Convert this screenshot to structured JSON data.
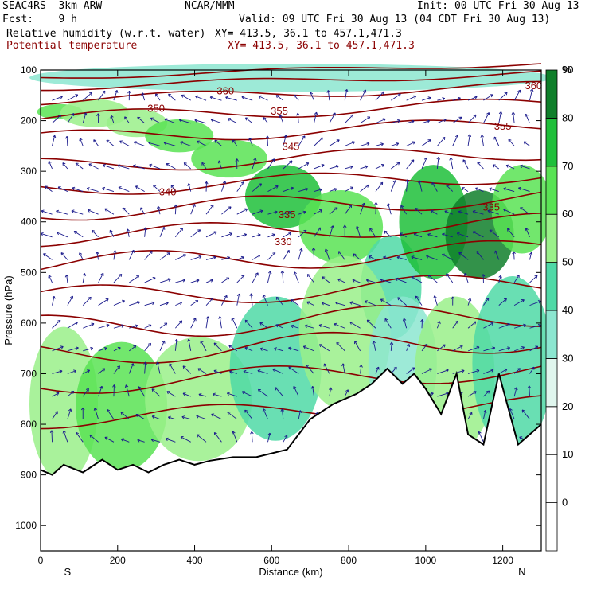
{
  "header": {
    "model_name": "SEAC4RS  3km ARW",
    "org": "NCAR/MMM",
    "init": "Init: 00 UTC Fri 30 Aug 13",
    "fcst": "Fcst:    9 h",
    "valid": "Valid: 09 UTC Fri 30 Aug 13 (04 CDT Fri 30 Aug 13)",
    "field1_name": "Relative humidity (w.r.t. water)",
    "field1_xy": "XY= 413.5, 36.1 to 457.1,471.3",
    "field2_name": "Potential temperature",
    "field2_xy": "XY= 413.5, 36.1 to 457.1,471.3"
  },
  "chart_data": {
    "type": "heatmap",
    "title": "",
    "xlabel": "Distance (km)",
    "ylabel": "Pressure (hPa)",
    "xlim": [
      0,
      1300
    ],
    "ylim": [
      1050,
      100
    ],
    "x_ticks": [
      0,
      200,
      400,
      600,
      800,
      1000,
      1200
    ],
    "y_ticks": [
      100,
      200,
      300,
      400,
      500,
      600,
      700,
      800,
      900,
      1000
    ],
    "x_end_labels": {
      "left": "S",
      "right": "N"
    },
    "colorbar": {
      "unit": "%",
      "levels": [
        0,
        10,
        20,
        30,
        40,
        50,
        60,
        70,
        80,
        90,
        100
      ],
      "tick_labels": [
        "0",
        "10",
        "20",
        "30",
        "40",
        "50",
        "60",
        "70",
        "80",
        "90"
      ],
      "colors": [
        "#ffffff",
        "#ffffff",
        "#ffffff",
        "#e0f6ee",
        "#8ce6d0",
        "#4fd9a6",
        "#9af08a",
        "#59e354",
        "#1fbf3a",
        "#0f7f2a"
      ]
    },
    "series": [
      {
        "field": "relative_humidity",
        "regions": [
          {
            "x": [
              20,
              80
            ],
            "p": [
              180,
              185
            ],
            "rh": 70
          },
          {
            "x": [
              80,
              200
            ],
            "p": [
              170,
              200
            ],
            "rh": 68
          },
          {
            "x": [
              200,
              300
            ],
            "p": [
              190,
              220
            ],
            "rh": 64
          },
          {
            "x": [
              300,
              420
            ],
            "p": [
              210,
              250
            ],
            "rh": 70
          },
          {
            "x": [
              420,
              560
            ],
            "p": [
              250,
              300
            ],
            "rh": 78
          },
          {
            "x": [
              560,
              700
            ],
            "p": [
              300,
              400
            ],
            "rh": 84
          },
          {
            "x": [
              700,
              860
            ],
            "p": [
              350,
              470
            ],
            "rh": 70
          },
          {
            "x": [
              860,
              960
            ],
            "p": [
              440,
              620
            ],
            "rh": 50
          },
          {
            "x": [
              960,
              1080
            ],
            "p": [
              300,
              500
            ],
            "rh": 80
          },
          {
            "x": [
              1080,
              1200
            ],
            "p": [
              350,
              500
            ],
            "rh": 92
          },
          {
            "x": [
              1200,
              1300
            ],
            "p": [
              300,
              450
            ],
            "rh": 72
          },
          {
            "x": [
              0,
              120
            ],
            "p": [
              620,
              900
            ],
            "rh": 60
          },
          {
            "x": [
              120,
              300
            ],
            "p": [
              650,
              880
            ],
            "rh": 72
          },
          {
            "x": [
              300,
              520
            ],
            "p": [
              640,
              860
            ],
            "rh": 60
          },
          {
            "x": [
              520,
              700
            ],
            "p": [
              560,
              820
            ],
            "rh": 56
          },
          {
            "x": [
              700,
              880
            ],
            "p": [
              480,
              760
            ],
            "rh": 60
          },
          {
            "x": [
              880,
              1000
            ],
            "p": [
              560,
              800
            ],
            "rh": 45
          },
          {
            "x": [
              1000,
              1150
            ],
            "p": [
              560,
              840
            ],
            "rh": 60
          },
          {
            "x": [
              1150,
              1300
            ],
            "p": [
              520,
              840
            ],
            "rh": 50
          },
          {
            "x": [
              0,
              1300
            ],
            "p": [
              100,
              130
            ],
            "rh": 40
          }
        ]
      },
      {
        "field": "potential_temperature",
        "contour_labels": [
          {
            "value": "360",
            "x": 480,
            "p": 140
          },
          {
            "value": "360",
            "x": 1280,
            "p": 130
          },
          {
            "value": "355",
            "x": 620,
            "p": 180
          },
          {
            "value": "355",
            "x": 1200,
            "p": 210
          },
          {
            "value": "350",
            "x": 300,
            "p": 175
          },
          {
            "value": "345",
            "x": 650,
            "p": 250
          },
          {
            "value": "340",
            "x": 330,
            "p": 340
          },
          {
            "value": "335",
            "x": 640,
            "p": 385
          },
          {
            "value": "335",
            "x": 1170,
            "p": 370
          },
          {
            "value": "330",
            "x": 630,
            "p": 438
          }
        ]
      }
    ],
    "terrain": "black line"
  }
}
